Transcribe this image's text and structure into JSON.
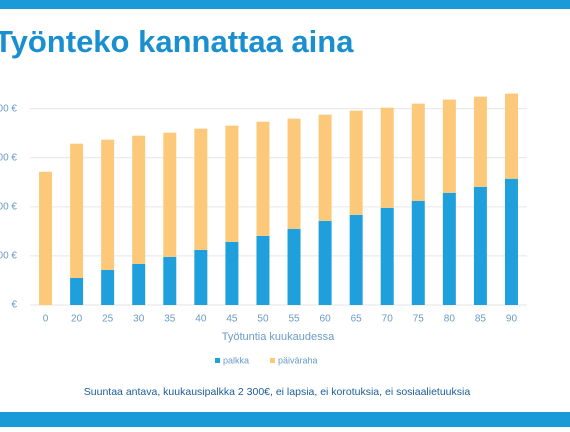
{
  "chart_data": {
    "type": "stacked-bar",
    "title": "Työnteko kannattaa aina",
    "x_label": "Työtuntia kuukaudessa",
    "footnote": "Suuntaa antava, kuukausipalkka 2 300€, ei lapsia, ei korotuksia, ei sosiaalietuuksia",
    "categories": [
      "0",
      "20",
      "25",
      "30",
      "35",
      "40",
      "45",
      "50",
      "55",
      "60",
      "65",
      "70",
      "75",
      "80",
      "85",
      "90"
    ],
    "series": [
      {
        "name": "palkka",
        "color": "#1fa0dc",
        "values": [
          0,
          276,
          357,
          418,
          490,
          561,
          643,
          704,
          776,
          857,
          918,
          990,
          1061,
          1143,
          1204,
          1286
        ]
      },
      {
        "name": "päiväraha",
        "color": "#fcc97a",
        "values": [
          1357,
          1367,
          1327,
          1306,
          1265,
          1235,
          1184,
          1163,
          1122,
          1082,
          1062,
          1020,
          990,
          949,
          918,
          867
        ]
      }
    ],
    "ylim": [
      0,
      2200
    ],
    "yticks": [
      {
        "value": 0,
        "label": "€"
      },
      {
        "value": 500,
        "label": "00 €"
      },
      {
        "value": 1000,
        "label": "00 €"
      },
      {
        "value": 1500,
        "label": "00 €"
      },
      {
        "value": 2000,
        "label": "00 €"
      }
    ],
    "grid": true,
    "legend": "bottom"
  }
}
